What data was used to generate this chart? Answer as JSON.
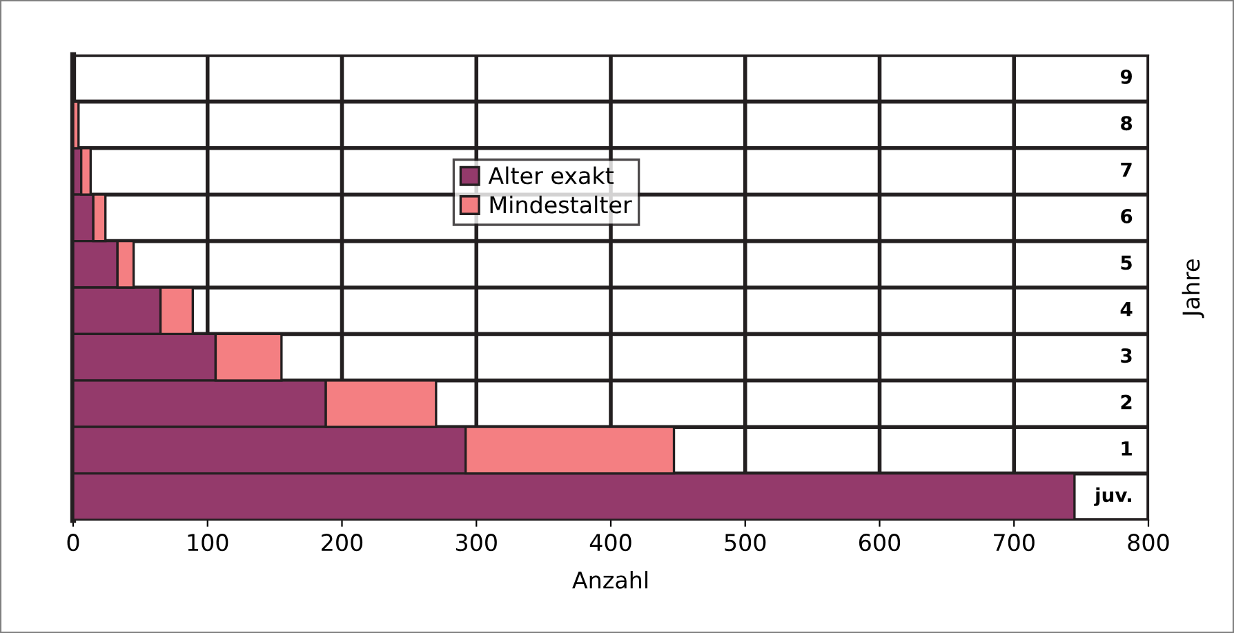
{
  "chart_data": {
    "type": "bar",
    "orientation": "horizontal",
    "stacked": true,
    "xlabel": "Anzahl",
    "ylabel": "Jahre",
    "categories": [
      "9",
      "8",
      "7",
      "6",
      "5",
      "4",
      "3",
      "2",
      "1",
      "juv."
    ],
    "series": [
      {
        "name": "Alter exakt",
        "color": "#943a6b",
        "values": [
          null,
          null,
          6,
          15,
          33,
          65,
          106,
          188,
          292,
          745
        ]
      },
      {
        "name": "Mindestalter",
        "color": "#f47f82",
        "values": [
          null,
          4,
          7,
          9,
          12,
          24,
          49,
          82,
          155,
          null
        ]
      }
    ],
    "xlim": [
      0,
      800
    ],
    "xticks": [
      0,
      100,
      200,
      300,
      400,
      500,
      600,
      700,
      800
    ],
    "grid": true,
    "legend": "top"
  }
}
